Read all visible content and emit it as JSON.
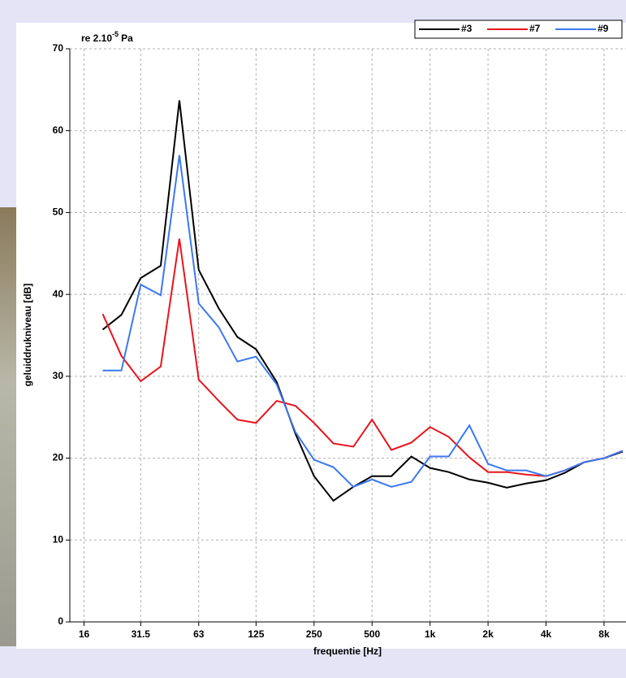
{
  "chart_data": {
    "type": "line",
    "reference": "re 2.10",
    "reference_exponent": "-5",
    "reference_unit": "Pa",
    "x_label": "frequentie [Hz]",
    "y_label": "geluiddrukniveau [dB]",
    "x": [
      20,
      25,
      31.5,
      40,
      50,
      63,
      80,
      100,
      125,
      160,
      200,
      250,
      315,
      400,
      500,
      630,
      800,
      1000,
      1250,
      1600,
      2000,
      2500,
      3150,
      4000,
      5000,
      6300,
      8000,
      10000
    ],
    "series": [
      {
        "name": "#3",
        "color": "#000000",
        "values": [
          35.7,
          37.5,
          42,
          43.5,
          63.7,
          43,
          38.3,
          34.8,
          33.3,
          29.3,
          23,
          17.8,
          14.8,
          16.5,
          17.8,
          17.8,
          20.2,
          18.8,
          18.3,
          17.4,
          17,
          16.4,
          16.9,
          17.3,
          18.2,
          19.5,
          20,
          20.8
        ]
      },
      {
        "name": "#7",
        "color": "#e8141c",
        "values": [
          37.6,
          32.5,
          29.4,
          31.2,
          46.8,
          29.6,
          27,
          24.7,
          24.3,
          27,
          26.4,
          24.3,
          21.8,
          21.4,
          24.7,
          21,
          21.9,
          23.8,
          22.6,
          20.1,
          18.3,
          18.3,
          18,
          17.8,
          18.5,
          19.5,
          20,
          20.9
        ]
      },
      {
        "name": "#9",
        "color": "#3c78f0",
        "values": [
          30.7,
          30.7,
          41.2,
          39.9,
          57,
          38.9,
          36,
          31.8,
          32.4,
          29,
          23.2,
          19.8,
          18.9,
          16.5,
          17.4,
          16.5,
          17.1,
          20.2,
          20.2,
          24,
          19.3,
          18.5,
          18.5,
          17.8,
          18.5,
          19.5,
          20,
          20.9
        ]
      }
    ],
    "xscale": "log",
    "xlim": [
      13.5,
      10400
    ],
    "xticks": [
      16,
      31.5,
      63,
      125,
      250,
      500,
      {
        "value": 1000,
        "label": "1k"
      },
      {
        "value": 2000,
        "label": "2k"
      },
      {
        "value": 4000,
        "label": "4k"
      },
      {
        "value": 8000,
        "label": "8k"
      }
    ],
    "ylim": [
      0,
      70
    ],
    "yticks": [
      0,
      10,
      20,
      30,
      40,
      50,
      60,
      70
    ],
    "grid": true,
    "legend": "top-right"
  }
}
